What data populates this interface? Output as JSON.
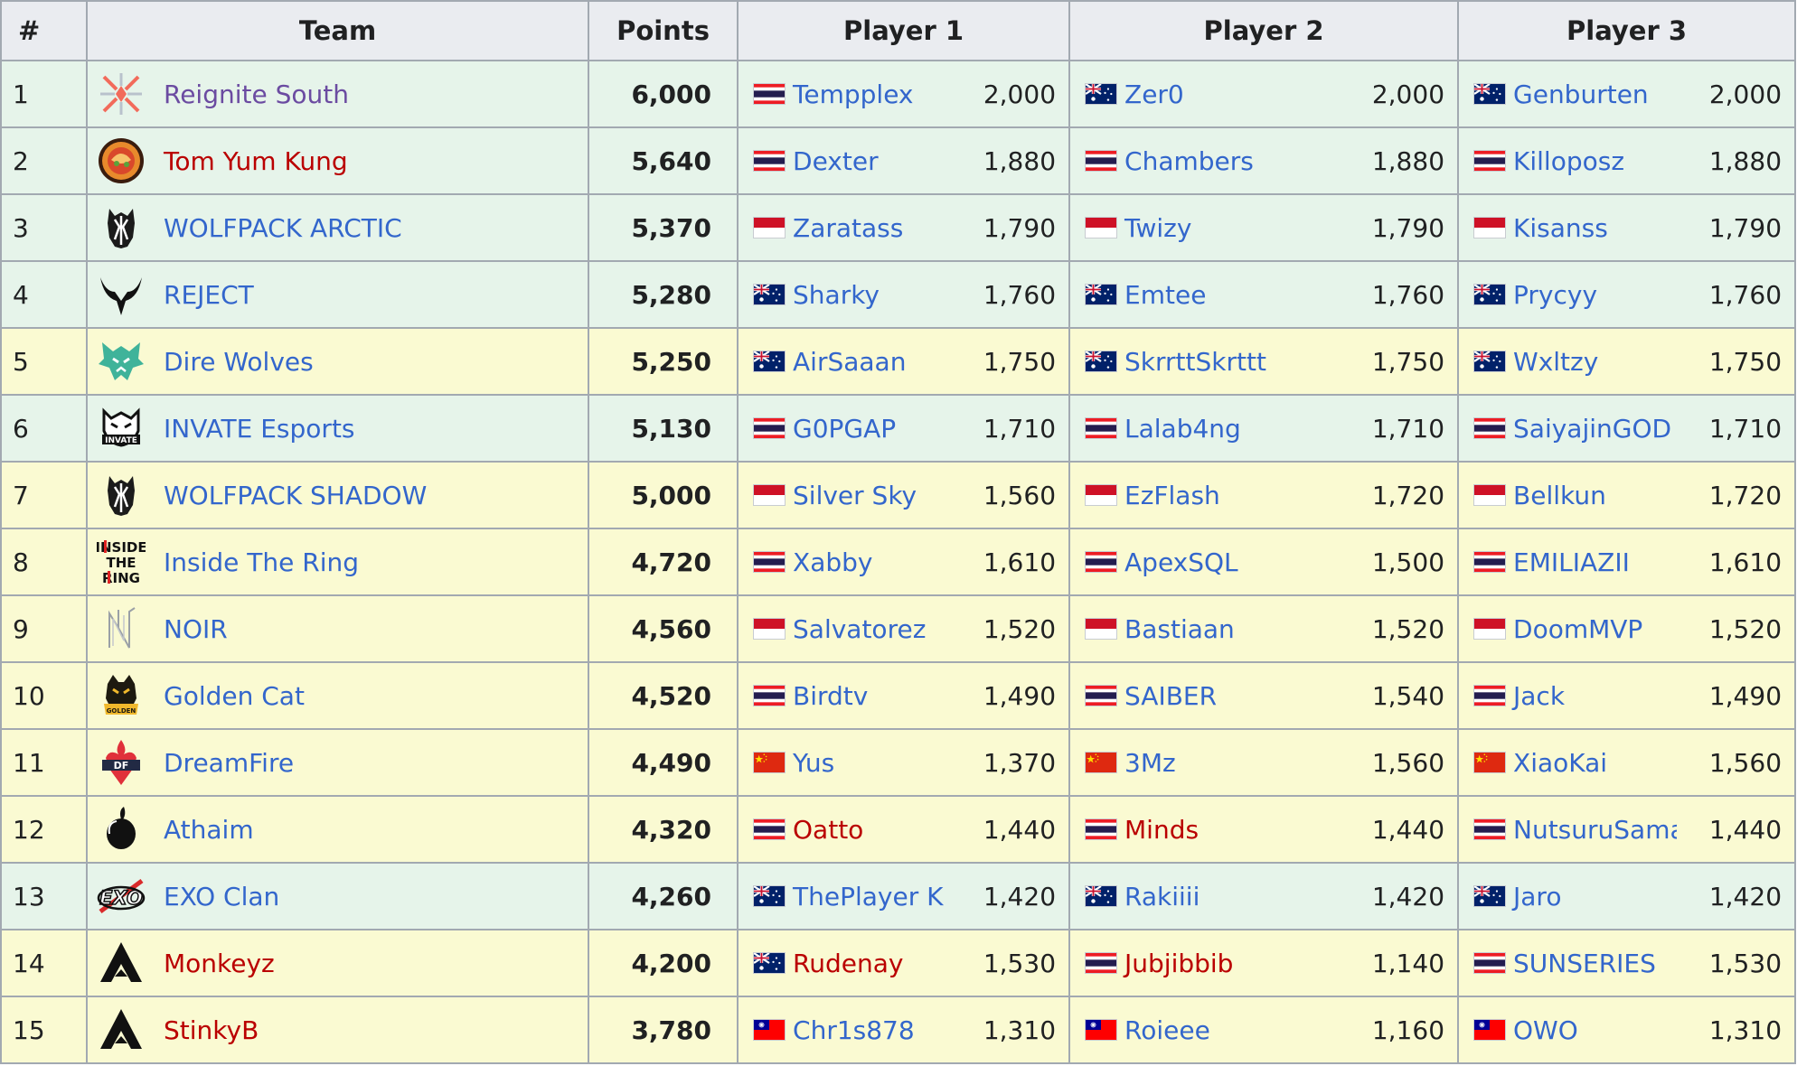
{
  "headers": {
    "rank": "#",
    "team": "Team",
    "points": "Points",
    "player1": "Player 1",
    "player2": "Player 2",
    "player3": "Player 3"
  },
  "rows": [
    {
      "rank": "1",
      "team": "Reignite South",
      "team_color": "purple",
      "logo": "reignite-icon",
      "points": "6,000",
      "row_color": "green",
      "p1": {
        "name": "Tempplex",
        "flag": "thailand",
        "pts": "2,000",
        "link": "blue"
      },
      "p2": {
        "name": "Zer0",
        "flag": "australia",
        "pts": "2,000",
        "link": "blue"
      },
      "p3": {
        "name": "Genburten",
        "flag": "australia",
        "pts": "2,000",
        "link": "blue"
      }
    },
    {
      "rank": "2",
      "team": "Tom Yum Kung",
      "team_color": "red",
      "logo": "tom-yum-kung-icon",
      "points": "5,640",
      "row_color": "green",
      "p1": {
        "name": "Dexter",
        "flag": "thailand",
        "pts": "1,880",
        "link": "blue"
      },
      "p2": {
        "name": "Chambers",
        "flag": "thailand",
        "pts": "1,880",
        "link": "blue"
      },
      "p3": {
        "name": "Killoposz",
        "flag": "thailand",
        "pts": "1,880",
        "link": "blue"
      }
    },
    {
      "rank": "3",
      "team": "WOLFPACK ARCTIC",
      "team_color": "blue",
      "logo": "wolfpack-icon",
      "points": "5,370",
      "row_color": "green",
      "p1": {
        "name": "Zaratass",
        "flag": "indonesia",
        "pts": "1,790",
        "link": "blue"
      },
      "p2": {
        "name": "Twizy",
        "flag": "indonesia",
        "pts": "1,790",
        "link": "blue"
      },
      "p3": {
        "name": "Kisanss",
        "flag": "indonesia",
        "pts": "1,790",
        "link": "blue"
      }
    },
    {
      "rank": "4",
      "team": "REJECT",
      "team_color": "blue",
      "logo": "reject-icon",
      "points": "5,280",
      "row_color": "green",
      "p1": {
        "name": "Sharky",
        "flag": "australia",
        "pts": "1,760",
        "link": "blue"
      },
      "p2": {
        "name": "Emtee",
        "flag": "australia",
        "pts": "1,760",
        "link": "blue"
      },
      "p3": {
        "name": "Prycyy",
        "flag": "australia",
        "pts": "1,760",
        "link": "blue"
      }
    },
    {
      "rank": "5",
      "team": "Dire Wolves",
      "team_color": "blue",
      "logo": "dire-wolves-icon",
      "points": "5,250",
      "row_color": "yellow",
      "p1": {
        "name": "AirSaaan",
        "flag": "australia",
        "pts": "1,750",
        "link": "blue"
      },
      "p2": {
        "name": "SkrrttSkrttt",
        "flag": "australia",
        "pts": "1,750",
        "link": "blue"
      },
      "p3": {
        "name": "Wxltzy",
        "flag": "australia",
        "pts": "1,750",
        "link": "blue"
      }
    },
    {
      "rank": "6",
      "team": "INVATE Esports",
      "team_color": "blue",
      "logo": "invate-icon",
      "points": "5,130",
      "row_color": "green",
      "p1": {
        "name": "G0PGAP",
        "flag": "thailand",
        "pts": "1,710",
        "link": "blue"
      },
      "p2": {
        "name": "Lalab4ng",
        "flag": "thailand",
        "pts": "1,710",
        "link": "blue"
      },
      "p3": {
        "name": "SaiyajinGOD",
        "flag": "thailand",
        "pts": "1,710",
        "link": "blue"
      }
    },
    {
      "rank": "7",
      "team": "WOLFPACK SHADOW",
      "team_color": "blue",
      "logo": "wolfpack-icon",
      "points": "5,000",
      "row_color": "yellow",
      "p1": {
        "name": "Silver Sky",
        "flag": "indonesia",
        "pts": "1,560",
        "link": "blue"
      },
      "p2": {
        "name": "EzFlash",
        "flag": "indonesia",
        "pts": "1,720",
        "link": "blue"
      },
      "p3": {
        "name": "Bellkun",
        "flag": "indonesia",
        "pts": "1,720",
        "link": "blue"
      }
    },
    {
      "rank": "8",
      "team": "Inside The Ring",
      "team_color": "blue",
      "logo": "inside-the-ring-icon",
      "logo_text": [
        "INSIDE",
        "THE",
        "RING"
      ],
      "points": "4,720",
      "row_color": "yellow",
      "p1": {
        "name": "Xabby",
        "flag": "thailand",
        "pts": "1,610",
        "link": "blue"
      },
      "p2": {
        "name": "ApexSQL",
        "flag": "thailand",
        "pts": "1,500",
        "link": "blue"
      },
      "p3": {
        "name": "EMILIAZII",
        "flag": "thailand",
        "pts": "1,610",
        "link": "blue"
      }
    },
    {
      "rank": "9",
      "team": "NOIR",
      "team_color": "blue",
      "logo": "noir-icon",
      "points": "4,560",
      "row_color": "yellow",
      "p1": {
        "name": "Salvatorez",
        "flag": "indonesia",
        "pts": "1,520",
        "link": "blue"
      },
      "p2": {
        "name": "Bastiaan",
        "flag": "indonesia",
        "pts": "1,520",
        "link": "blue"
      },
      "p3": {
        "name": "DoomMVP",
        "flag": "indonesia",
        "pts": "1,520",
        "link": "blue"
      }
    },
    {
      "rank": "10",
      "team": "Golden Cat",
      "team_color": "blue",
      "logo": "golden-cat-icon",
      "points": "4,520",
      "row_color": "yellow",
      "p1": {
        "name": "Birdtv",
        "flag": "thailand",
        "pts": "1,490",
        "link": "blue"
      },
      "p2": {
        "name": "SAIBER",
        "flag": "thailand",
        "pts": "1,540",
        "link": "blue"
      },
      "p3": {
        "name": "Jack",
        "flag": "thailand",
        "pts": "1,490",
        "link": "blue"
      }
    },
    {
      "rank": "11",
      "team": "DreamFire",
      "team_color": "blue",
      "logo": "dreamfire-icon",
      "points": "4,490",
      "row_color": "yellow",
      "p1": {
        "name": "Yus",
        "flag": "china",
        "pts": "1,370",
        "link": "blue"
      },
      "p2": {
        "name": "3Mz",
        "flag": "china",
        "pts": "1,560",
        "link": "blue"
      },
      "p3": {
        "name": "XiaoKai",
        "flag": "china",
        "pts": "1,560",
        "link": "blue"
      }
    },
    {
      "rank": "12",
      "team": "Athaim",
      "team_color": "blue",
      "logo": "athaim-icon",
      "points": "4,320",
      "row_color": "yellow",
      "p1": {
        "name": "Oatto",
        "flag": "thailand",
        "pts": "1,440",
        "link": "red"
      },
      "p2": {
        "name": "Minds",
        "flag": "thailand",
        "pts": "1,440",
        "link": "red"
      },
      "p3": {
        "name": "NutsuruSama",
        "flag": "thailand",
        "pts": "1,440",
        "link": "blue"
      }
    },
    {
      "rank": "13",
      "team": "EXO Clan",
      "team_color": "blue",
      "logo": "exo-clan-icon",
      "logo_text": [
        "EXO"
      ],
      "points": "4,260",
      "row_color": "green",
      "p1": {
        "name": "ThePlayer K",
        "flag": "australia",
        "pts": "1,420",
        "link": "blue"
      },
      "p2": {
        "name": "Rakiiii",
        "flag": "australia",
        "pts": "1,420",
        "link": "blue"
      },
      "p3": {
        "name": "Jaro",
        "flag": "australia",
        "pts": "1,420",
        "link": "blue"
      }
    },
    {
      "rank": "14",
      "team": "Monkeyz",
      "team_color": "red",
      "logo": "apex-icon",
      "points": "4,200",
      "row_color": "yellow",
      "p1": {
        "name": "Rudenay",
        "flag": "australia",
        "pts": "1,530",
        "link": "red"
      },
      "p2": {
        "name": "Jubjibbib",
        "flag": "thailand",
        "pts": "1,140",
        "link": "red"
      },
      "p3": {
        "name": "SUNSERIES",
        "flag": "thailand",
        "pts": "1,530",
        "link": "blue"
      }
    },
    {
      "rank": "15",
      "team": "StinkyB",
      "team_color": "red",
      "logo": "apex-icon",
      "points": "3,780",
      "row_color": "yellow",
      "p1": {
        "name": "Chr1s878",
        "flag": "taiwan",
        "pts": "1,310",
        "link": "blue"
      },
      "p2": {
        "name": "Roieee",
        "flag": "taiwan",
        "pts": "1,160",
        "link": "blue"
      },
      "p3": {
        "name": "OWO",
        "flag": "taiwan",
        "pts": "1,310",
        "link": "blue"
      }
    }
  ],
  "colors": {
    "link_blue": "#3366cc",
    "link_red": "#ba0000",
    "link_purple": "#6b4ba1",
    "row_green": "#e6f4ea",
    "row_yellow": "#fafad2",
    "header_bg": "#eaecf0",
    "border": "#a2a9b1"
  }
}
